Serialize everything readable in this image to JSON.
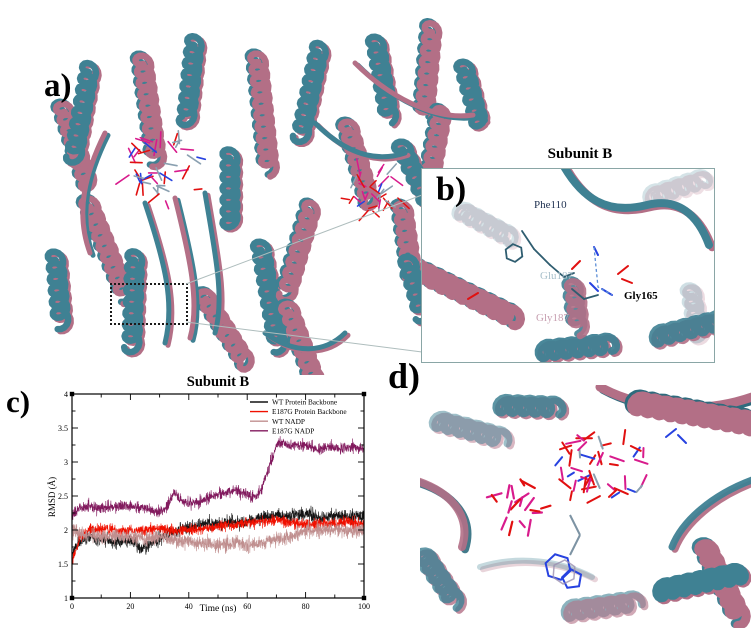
{
  "figure_labels": {
    "a": "a)",
    "b": "b)",
    "c": "c)",
    "d": "d)"
  },
  "panel_b": {
    "title": "Subunit B",
    "residues": [
      {
        "name": "Phe110",
        "color": "#1e3050"
      },
      {
        "name": "Glu187",
        "color": "#a9c0cb"
      },
      {
        "name": "Gly165",
        "color": "#000000"
      },
      {
        "name": "Gly187",
        "color": "#c79fb0"
      }
    ]
  },
  "colors": {
    "wt_ribbon_teal": "#3f8193",
    "mutant_ribbon_mauve": "#b36f86",
    "dark_teal": "#2e6b7d",
    "light_mauve": "#c49aa9",
    "ligand_magenta": "#d81b8c",
    "ligand_red": "#e11010",
    "ligand_blue": "#2742e0",
    "ligand_gray": "#8aa0b0",
    "hbond_blue": "#5b8dd6",
    "box_border": "#8aa6a6"
  },
  "chart_data": {
    "type": "line",
    "title": "Subunit B",
    "xlabel": "Time (ns)",
    "ylabel": "RMSD (Å)",
    "xlim": [
      0,
      100
    ],
    "ylim": [
      1,
      4
    ],
    "xticks": [
      0,
      20,
      40,
      60,
      80,
      100
    ],
    "yticks": [
      1,
      1.5,
      2,
      2.5,
      3,
      3.5,
      4
    ],
    "grid": false,
    "legend_position": "top-right",
    "series": [
      {
        "name": "WT Protein Backbone",
        "color": "#141414",
        "noise": 0.13,
        "x": [
          0,
          1,
          3,
          6,
          10,
          15,
          20,
          24,
          26,
          30,
          34,
          38,
          42,
          46,
          50,
          54,
          58,
          62,
          66,
          70,
          75,
          80,
          85,
          90,
          95,
          100
        ],
        "y": [
          1.62,
          1.72,
          1.85,
          1.9,
          1.88,
          1.82,
          1.85,
          1.72,
          1.78,
          1.88,
          1.95,
          2.02,
          2.05,
          2.1,
          2.08,
          2.12,
          2.1,
          2.15,
          2.2,
          2.22,
          2.2,
          2.25,
          2.18,
          2.22,
          2.2,
          2.2
        ]
      },
      {
        "name": "E187G Protein Backbone",
        "color": "#f01000",
        "noise": 0.11,
        "x": [
          0,
          1,
          3,
          6,
          10,
          15,
          20,
          25,
          30,
          35,
          40,
          45,
          50,
          55,
          60,
          65,
          70,
          75,
          80,
          85,
          90,
          95,
          100
        ],
        "y": [
          1.52,
          1.65,
          1.9,
          2.0,
          2.02,
          2.0,
          1.98,
          2.0,
          2.02,
          1.98,
          2.0,
          2.02,
          2.05,
          2.08,
          2.1,
          2.12,
          2.15,
          2.1,
          2.08,
          2.1,
          2.1,
          2.12,
          2.1
        ]
      },
      {
        "name": "WT NADP",
        "color": "#c08f8f",
        "noise": 0.14,
        "x": [
          0,
          5,
          10,
          15,
          20,
          25,
          30,
          35,
          40,
          45,
          50,
          55,
          60,
          65,
          70,
          75,
          80,
          85,
          90,
          95,
          100
        ],
        "y": [
          2.0,
          1.92,
          1.9,
          1.92,
          1.9,
          1.88,
          1.9,
          1.85,
          1.82,
          1.8,
          1.78,
          1.8,
          1.78,
          1.8,
          1.85,
          1.9,
          2.0,
          1.98,
          2.0,
          1.98,
          2.0
        ]
      },
      {
        "name": "E187G NADP",
        "color": "#821a5e",
        "noise": 0.11,
        "x": [
          0,
          2,
          5,
          10,
          15,
          20,
          25,
          28,
          32,
          35,
          38,
          40,
          44,
          48,
          52,
          56,
          60,
          63,
          65,
          66,
          68,
          69,
          70,
          72,
          75,
          80,
          84,
          88,
          92,
          96,
          100
        ],
        "y": [
          2.2,
          2.3,
          2.35,
          2.32,
          2.35,
          2.35,
          2.32,
          2.28,
          2.3,
          2.55,
          2.42,
          2.38,
          2.42,
          2.5,
          2.55,
          2.6,
          2.52,
          2.48,
          2.6,
          2.75,
          3.0,
          3.1,
          3.25,
          3.28,
          3.25,
          3.25,
          3.18,
          3.22,
          3.2,
          3.22,
          3.18
        ]
      }
    ]
  }
}
